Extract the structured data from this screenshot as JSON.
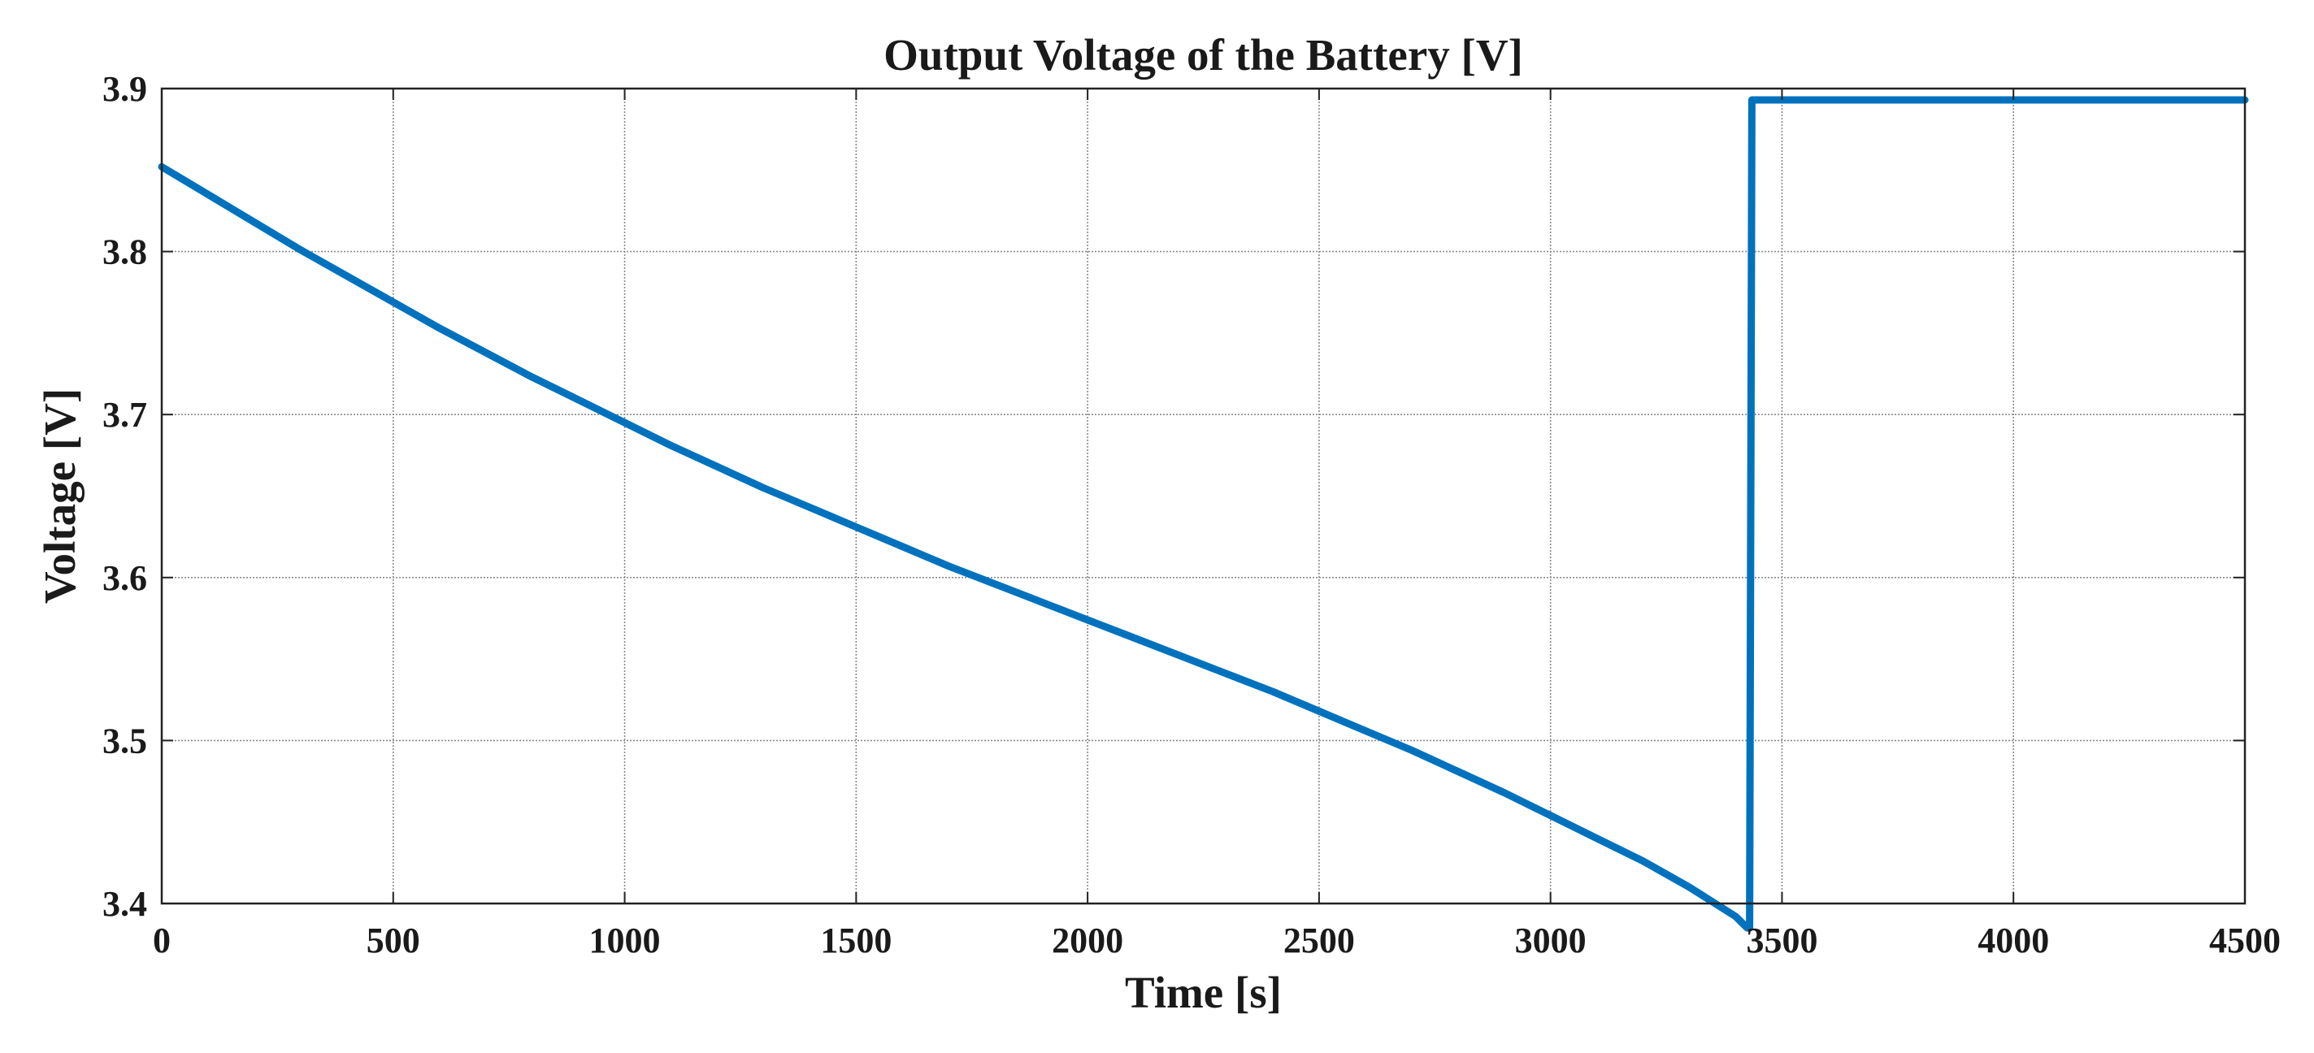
{
  "chart_data": {
    "type": "line",
    "title": "Output Voltage of the Battery [V]",
    "xlabel": "Time [s]",
    "ylabel": "Voltage [V]",
    "xlim": [
      0,
      4500
    ],
    "ylim": [
      3.4,
      3.9
    ],
    "xticks": [
      0,
      500,
      1000,
      1500,
      2000,
      2500,
      3000,
      3500,
      4000,
      4500
    ],
    "yticks": [
      3.4,
      3.5,
      3.6,
      3.7,
      3.8,
      3.9
    ],
    "xtick_labels": [
      "0",
      "500",
      "1000",
      "1500",
      "2000",
      "2500",
      "3000",
      "3500",
      "4000",
      "4500"
    ],
    "ytick_labels": [
      "3.4",
      "3.5",
      "3.6",
      "3.7",
      "3.8",
      "3.9"
    ],
    "grid": true,
    "series": [
      {
        "color": "#0072BD",
        "x": [
          0,
          100,
          200,
          300,
          400,
          500,
          600,
          700,
          800,
          900,
          1000,
          1100,
          1200,
          1300,
          1400,
          1500,
          1600,
          1700,
          1800,
          1900,
          2000,
          2100,
          2200,
          2300,
          2400,
          2500,
          2600,
          2700,
          2800,
          2900,
          3000,
          3100,
          3200,
          3300,
          3400,
          3425,
          3430,
          3435,
          4500
        ],
        "y": [
          3.852,
          3.835,
          3.818,
          3.801,
          3.785,
          3.769,
          3.753,
          3.738,
          3.723,
          3.709,
          3.695,
          3.681,
          3.668,
          3.655,
          3.643,
          3.631,
          3.619,
          3.607,
          3.596,
          3.585,
          3.574,
          3.563,
          3.552,
          3.541,
          3.53,
          3.518,
          3.506,
          3.494,
          3.481,
          3.468,
          3.454,
          3.44,
          3.426,
          3.41,
          3.392,
          3.385,
          3.385,
          3.893,
          3.893
        ]
      }
    ]
  }
}
